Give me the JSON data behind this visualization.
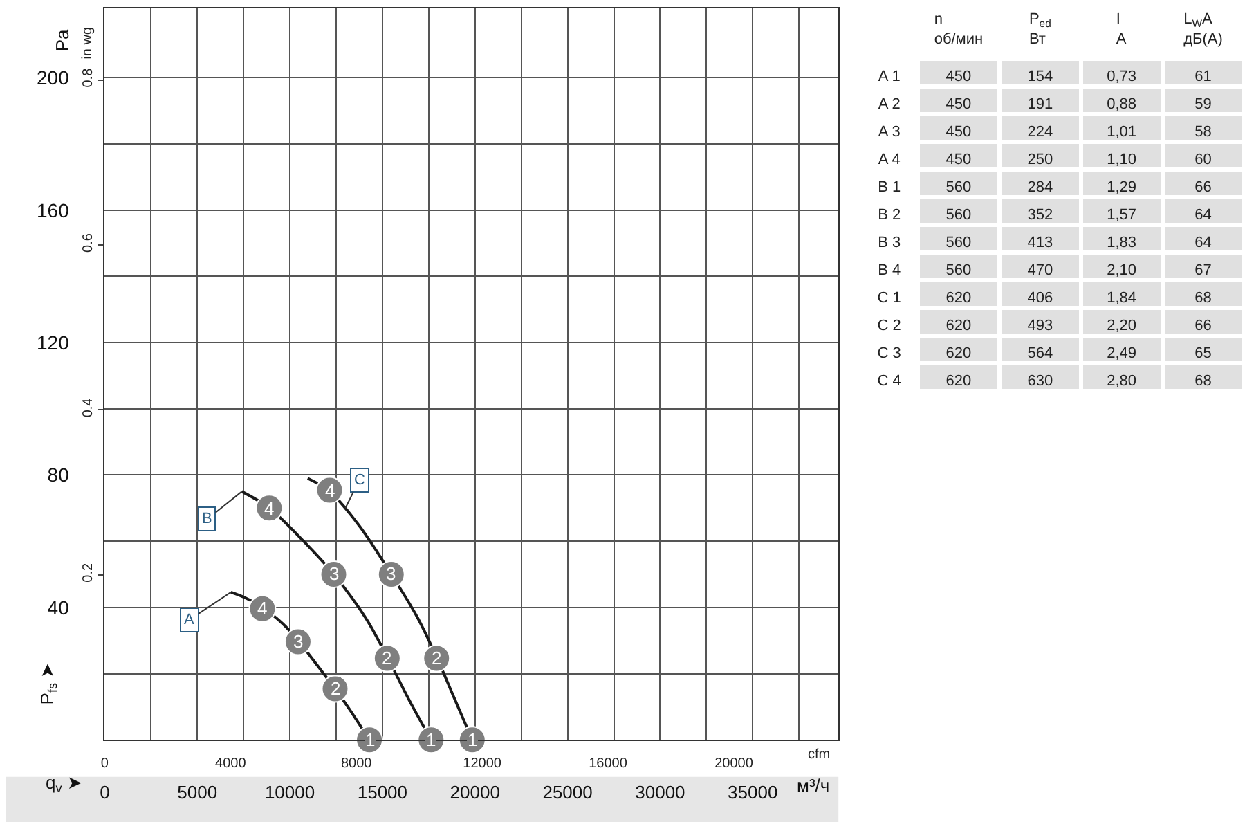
{
  "chart_data": [
    {
      "type": "line",
      "xlabel": "q$_{v}$ ➤",
      "ylabel": "Pa",
      "y2label": "in wg",
      "x2label": "cfm",
      "xlim": [
        0,
        39630
      ],
      "xticks": [
        0,
        {
          "value": 2500,
          "label": null
        },
        5000,
        {
          "value": 7500,
          "label": null
        },
        10000,
        {
          "value": 12500,
          "label": null
        },
        15000,
        {
          "value": 17500,
          "label": null
        },
        20000,
        {
          "value": 22500,
          "label": null
        },
        25000,
        {
          "value": 27500,
          "label": null
        },
        30000,
        {
          "value": 32500,
          "label": null
        },
        35000,
        {
          "value": 37500,
          "label": null
        }
      ],
      "x2lim": [
        0,
        23325
      ],
      "x2ticks": [
        0,
        4000,
        8000,
        12000,
        16000,
        20000
      ],
      "ylim": [
        0,
        221
      ],
      "yticks": [
        {
          "value": 20,
          "label": null
        },
        40,
        {
          "value": 60,
          "label": null
        },
        80,
        {
          "value": 100,
          "label": null
        },
        120,
        {
          "value": 140,
          "label": null
        },
        160,
        {
          "value": 180,
          "label": null
        },
        200
      ],
      "y2lim": [
        0,
        0.887
      ],
      "y2ticks": [
        0.2,
        0.4,
        0.6,
        0.8
      ],
      "grid": true,
      "series": [
        {
          "color": "#1a1a1a",
          "x": [
            6815,
            7556,
            8519,
            9630,
            10444,
            11481,
            12444,
            13333,
            14296
          ],
          "values": [
            44.6,
            43,
            40,
            35,
            30,
            22.5,
            15.4,
            8.3,
            0
          ]
        },
        {
          "color": "#1a1a1a",
          "x": [
            7407,
            8889,
            10741,
            12370,
            14074,
            15259,
            16444,
            17630
          ],
          "values": [
            75,
            70,
            60,
            50,
            37,
            25,
            12,
            0
          ]
        },
        {
          "color": "#1a1a1a",
          "x": [
            10963,
            12148,
            13704,
            15481,
            16889,
            17926,
            18889,
            19852
          ],
          "values": [
            79,
            75,
            65,
            50,
            37,
            25,
            12.5,
            0
          ]
        },
        {
          "type": "scatter",
          "marker": "circle",
          "color": "#7f7f7f",
          "x": [
            8519,
            10444,
            12444,
            14296,
            8889,
            12370,
            15259,
            17630,
            12148,
            15481,
            17926,
            19852
          ],
          "values": [
            39.6,
            29.6,
            15.4,
            0,
            70,
            50,
            24.6,
            0,
            75.4,
            50,
            24.6,
            0
          ]
        }
      ],
      "annotations": [
        {
          "text": "A",
          "x": 6815,
          "y": 44.6
        },
        {
          "text": "B",
          "x": 7407,
          "y": 75
        },
        {
          "text": "C",
          "x": 13000,
          "y": 70
        },
        {
          "text": "4",
          "x": 8519,
          "y": 39.6
        },
        {
          "text": "3",
          "x": 10444,
          "y": 29.6
        },
        {
          "text": "2",
          "x": 12444,
          "y": 15.4
        },
        {
          "text": "1",
          "x": 14296,
          "y": 0
        },
        {
          "text": "4",
          "x": 8889,
          "y": 70
        },
        {
          "text": "3",
          "x": 12370,
          "y": 50
        },
        {
          "text": "2",
          "x": 15259,
          "y": 24.6
        },
        {
          "text": "1",
          "x": 17630,
          "y": 0
        },
        {
          "text": "4",
          "x": 12148,
          "y": 75.4
        },
        {
          "text": "3",
          "x": 15481,
          "y": 50
        },
        {
          "text": "2",
          "x": 17926,
          "y": 24.6
        },
        {
          "text": "1",
          "x": 19852,
          "y": 0
        },
        "м³/ч",
        "P$_{fs}$ ➤"
      ]
    },
    {
      "type": "other",
      "categories": [
        "n\nоб/мин",
        "P$_{ed}$\nВт",
        "I\nA",
        "L$_{W}$A\nдБ(A)"
      ],
      "y_categories": [
        "A 1",
        "A 2",
        "A 3",
        "A 4",
        "B 1",
        "B 2",
        "B 3",
        "B 4",
        "C 1",
        "C 2",
        "C 3",
        "C 4"
      ],
      "cell_labels": [
        [
          "450",
          "154",
          "0,73",
          "61"
        ],
        [
          "450",
          "191",
          "0,88",
          "59"
        ],
        [
          "450",
          "224",
          "1,01",
          "58"
        ],
        [
          "450",
          "250",
          "1,10",
          "60"
        ],
        [
          "560",
          "284",
          "1,29",
          "66"
        ],
        [
          "560",
          "352",
          "1,57",
          "64"
        ],
        [
          "560",
          "413",
          "1,83",
          "64"
        ],
        [
          "560",
          "470",
          "2,10",
          "67"
        ],
        [
          "620",
          "406",
          "1,84",
          "68"
        ],
        [
          "620",
          "493",
          "2,20",
          "66"
        ],
        [
          "620",
          "564",
          "2,49",
          "65"
        ],
        [
          "620",
          "630",
          "2,80",
          "68"
        ]
      ]
    }
  ]
}
